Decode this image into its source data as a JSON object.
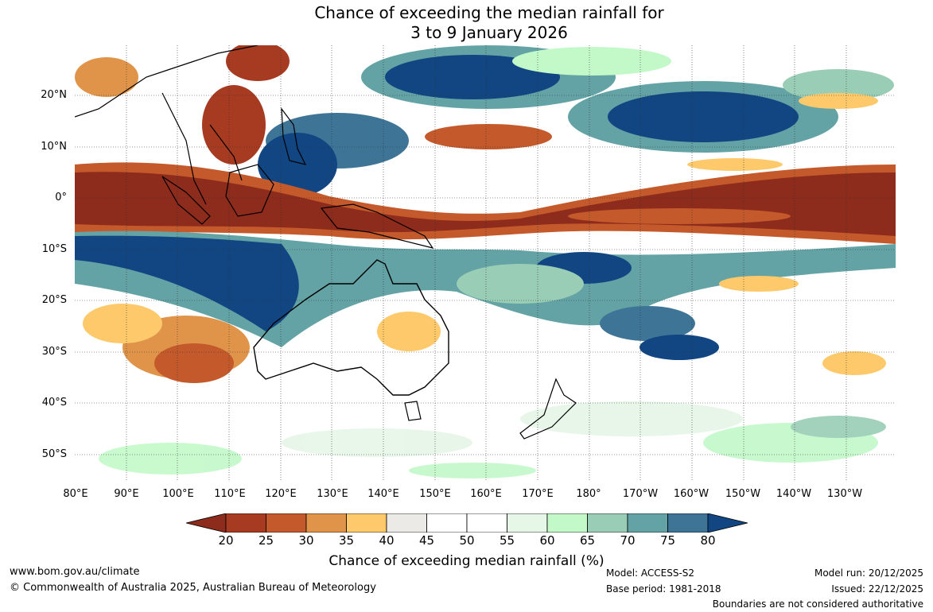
{
  "title": {
    "line1": "Chance of exceeding the median rainfall for",
    "line2": "3 to 9 January 2026"
  },
  "map": {
    "lat_labels": [
      "20°N",
      "10°N",
      "0°",
      "10°S",
      "20°S",
      "30°S",
      "40°S",
      "50°S"
    ],
    "lon_labels": [
      "80°E",
      "90°E",
      "100°E",
      "110°E",
      "120°E",
      "130°E",
      "140°E",
      "150°E",
      "160°E",
      "170°E",
      "180°",
      "170°W",
      "160°W",
      "150°W",
      "140°W",
      "130°W"
    ]
  },
  "colorbar": {
    "ticks": [
      "20",
      "25",
      "30",
      "35",
      "40",
      "45",
      "50",
      "55",
      "60",
      "65",
      "70",
      "75",
      "80"
    ],
    "colors": [
      "#a63b22",
      "#c4592b",
      "#e0944a",
      "#fdc96a",
      "#eceae6",
      "#ffffff",
      "#ffffff",
      "#e6f6e7",
      "#c3f9c9",
      "#99cdb5",
      "#63a3a5",
      "#3e7597"
    ],
    "under_color": "#8d2b1c",
    "over_color": "#114683",
    "title": "Chance of exceeding median rainfall (%)"
  },
  "footer": {
    "website": "www.bom.gov.au/climate",
    "copyright": "© Commonwealth of Australia 2025, Australian Bureau of Meteorology",
    "model": "Model: ACCESS-S2",
    "base_period": "Base period: 1981-2018",
    "model_run": "Model run: 20/12/2025",
    "issued": "Issued: 22/12/2025",
    "disclaimer": "Boundaries are not considered authoritative"
  }
}
